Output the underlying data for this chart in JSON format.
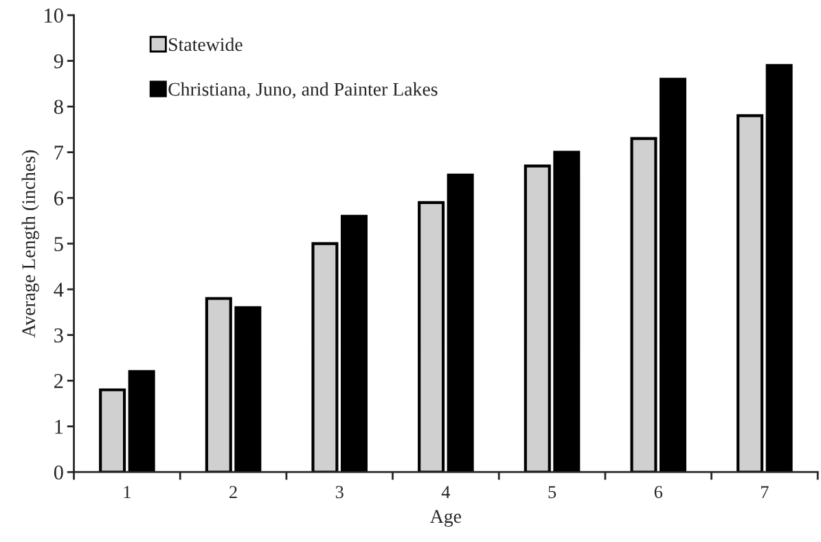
{
  "chart_data": {
    "type": "bar",
    "xlabel": "Age",
    "ylabel": "Average Length (inches)",
    "categories": [
      "1",
      "2",
      "3",
      "4",
      "5",
      "6",
      "7"
    ],
    "series": [
      {
        "name": "Statewide",
        "color": "#d0d0d0",
        "values": [
          1.8,
          3.8,
          5.0,
          5.9,
          6.7,
          7.3,
          7.8
        ]
      },
      {
        "name": "Christiana, Juno, and Painter Lakes",
        "color": "#000000",
        "values": [
          2.2,
          3.6,
          5.6,
          6.5,
          7.0,
          8.6,
          8.9
        ]
      }
    ],
    "ylim": [
      0,
      10
    ],
    "yticks": [
      0,
      1,
      2,
      3,
      4,
      5,
      6,
      7,
      8,
      9,
      10
    ],
    "grid": false,
    "legend": "top left"
  }
}
